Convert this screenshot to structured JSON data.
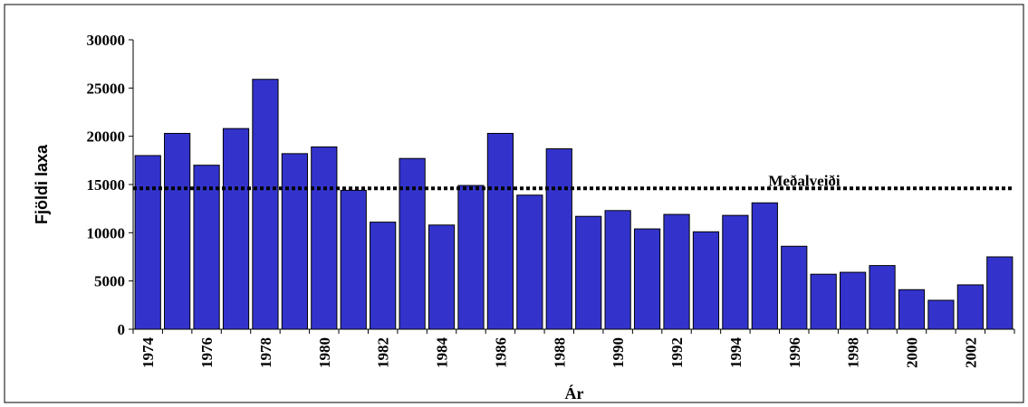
{
  "chart_data": {
    "type": "bar",
    "title": "",
    "xlabel": "Ár",
    "ylabel": "Fjöldi laxa",
    "ylim": [
      0,
      30000
    ],
    "yticks": [
      0,
      5000,
      10000,
      15000,
      20000,
      25000,
      30000
    ],
    "categories": [
      "1974",
      "1975",
      "1976",
      "1977",
      "1978",
      "1979",
      "1980",
      "1981",
      "1982",
      "1983",
      "1984",
      "1985",
      "1986",
      "1987",
      "1988",
      "1989",
      "1990",
      "1991",
      "1992",
      "1993",
      "1994",
      "1995",
      "1996",
      "1997",
      "1998",
      "1999",
      "2000",
      "2001",
      "2002",
      "2003"
    ],
    "xtick_labels": [
      "1974",
      "1976",
      "1978",
      "1980",
      "1982",
      "1984",
      "1986",
      "1988",
      "1990",
      "1992",
      "1994",
      "1996",
      "1998",
      "2000",
      "2002"
    ],
    "values": [
      18000,
      20300,
      17000,
      20800,
      25900,
      18200,
      18900,
      14400,
      11100,
      17700,
      10800,
      14900,
      20300,
      13900,
      18700,
      11700,
      12300,
      10400,
      11900,
      10100,
      11800,
      13100,
      8600,
      5700,
      5900,
      6600,
      4100,
      3000,
      4600,
      7500
    ],
    "bar_color": "#3333cc",
    "reference_line": {
      "label": "Meðalveiði",
      "value": 14600
    },
    "grid": false,
    "legend": "none"
  }
}
